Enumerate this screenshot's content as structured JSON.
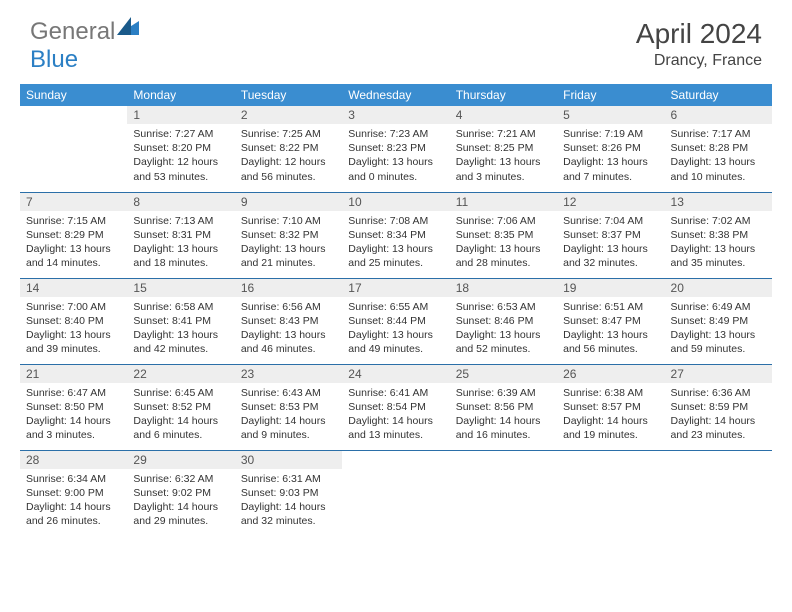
{
  "brand": {
    "part1": "General",
    "part2": "Blue"
  },
  "title": "April 2024",
  "location": "Drancy, France",
  "colors": {
    "header_bg": "#3a8dd0",
    "header_text": "#ffffff",
    "border": "#2b6fa8",
    "daynum_bg": "#eeeeee",
    "text": "#333333",
    "brand_blue": "#2b7fc4",
    "brand_gray": "#777777"
  },
  "weekdays": [
    "Sunday",
    "Monday",
    "Tuesday",
    "Wednesday",
    "Thursday",
    "Friday",
    "Saturday"
  ],
  "weeks": [
    [
      {
        "n": "",
        "sr": "",
        "ss": "",
        "dl": ""
      },
      {
        "n": "1",
        "sr": "Sunrise: 7:27 AM",
        "ss": "Sunset: 8:20 PM",
        "dl": "Daylight: 12 hours and 53 minutes."
      },
      {
        "n": "2",
        "sr": "Sunrise: 7:25 AM",
        "ss": "Sunset: 8:22 PM",
        "dl": "Daylight: 12 hours and 56 minutes."
      },
      {
        "n": "3",
        "sr": "Sunrise: 7:23 AM",
        "ss": "Sunset: 8:23 PM",
        "dl": "Daylight: 13 hours and 0 minutes."
      },
      {
        "n": "4",
        "sr": "Sunrise: 7:21 AM",
        "ss": "Sunset: 8:25 PM",
        "dl": "Daylight: 13 hours and 3 minutes."
      },
      {
        "n": "5",
        "sr": "Sunrise: 7:19 AM",
        "ss": "Sunset: 8:26 PM",
        "dl": "Daylight: 13 hours and 7 minutes."
      },
      {
        "n": "6",
        "sr": "Sunrise: 7:17 AM",
        "ss": "Sunset: 8:28 PM",
        "dl": "Daylight: 13 hours and 10 minutes."
      }
    ],
    [
      {
        "n": "7",
        "sr": "Sunrise: 7:15 AM",
        "ss": "Sunset: 8:29 PM",
        "dl": "Daylight: 13 hours and 14 minutes."
      },
      {
        "n": "8",
        "sr": "Sunrise: 7:13 AM",
        "ss": "Sunset: 8:31 PM",
        "dl": "Daylight: 13 hours and 18 minutes."
      },
      {
        "n": "9",
        "sr": "Sunrise: 7:10 AM",
        "ss": "Sunset: 8:32 PM",
        "dl": "Daylight: 13 hours and 21 minutes."
      },
      {
        "n": "10",
        "sr": "Sunrise: 7:08 AM",
        "ss": "Sunset: 8:34 PM",
        "dl": "Daylight: 13 hours and 25 minutes."
      },
      {
        "n": "11",
        "sr": "Sunrise: 7:06 AM",
        "ss": "Sunset: 8:35 PM",
        "dl": "Daylight: 13 hours and 28 minutes."
      },
      {
        "n": "12",
        "sr": "Sunrise: 7:04 AM",
        "ss": "Sunset: 8:37 PM",
        "dl": "Daylight: 13 hours and 32 minutes."
      },
      {
        "n": "13",
        "sr": "Sunrise: 7:02 AM",
        "ss": "Sunset: 8:38 PM",
        "dl": "Daylight: 13 hours and 35 minutes."
      }
    ],
    [
      {
        "n": "14",
        "sr": "Sunrise: 7:00 AM",
        "ss": "Sunset: 8:40 PM",
        "dl": "Daylight: 13 hours and 39 minutes."
      },
      {
        "n": "15",
        "sr": "Sunrise: 6:58 AM",
        "ss": "Sunset: 8:41 PM",
        "dl": "Daylight: 13 hours and 42 minutes."
      },
      {
        "n": "16",
        "sr": "Sunrise: 6:56 AM",
        "ss": "Sunset: 8:43 PM",
        "dl": "Daylight: 13 hours and 46 minutes."
      },
      {
        "n": "17",
        "sr": "Sunrise: 6:55 AM",
        "ss": "Sunset: 8:44 PM",
        "dl": "Daylight: 13 hours and 49 minutes."
      },
      {
        "n": "18",
        "sr": "Sunrise: 6:53 AM",
        "ss": "Sunset: 8:46 PM",
        "dl": "Daylight: 13 hours and 52 minutes."
      },
      {
        "n": "19",
        "sr": "Sunrise: 6:51 AM",
        "ss": "Sunset: 8:47 PM",
        "dl": "Daylight: 13 hours and 56 minutes."
      },
      {
        "n": "20",
        "sr": "Sunrise: 6:49 AM",
        "ss": "Sunset: 8:49 PM",
        "dl": "Daylight: 13 hours and 59 minutes."
      }
    ],
    [
      {
        "n": "21",
        "sr": "Sunrise: 6:47 AM",
        "ss": "Sunset: 8:50 PM",
        "dl": "Daylight: 14 hours and 3 minutes."
      },
      {
        "n": "22",
        "sr": "Sunrise: 6:45 AM",
        "ss": "Sunset: 8:52 PM",
        "dl": "Daylight: 14 hours and 6 minutes."
      },
      {
        "n": "23",
        "sr": "Sunrise: 6:43 AM",
        "ss": "Sunset: 8:53 PM",
        "dl": "Daylight: 14 hours and 9 minutes."
      },
      {
        "n": "24",
        "sr": "Sunrise: 6:41 AM",
        "ss": "Sunset: 8:54 PM",
        "dl": "Daylight: 14 hours and 13 minutes."
      },
      {
        "n": "25",
        "sr": "Sunrise: 6:39 AM",
        "ss": "Sunset: 8:56 PM",
        "dl": "Daylight: 14 hours and 16 minutes."
      },
      {
        "n": "26",
        "sr": "Sunrise: 6:38 AM",
        "ss": "Sunset: 8:57 PM",
        "dl": "Daylight: 14 hours and 19 minutes."
      },
      {
        "n": "27",
        "sr": "Sunrise: 6:36 AM",
        "ss": "Sunset: 8:59 PM",
        "dl": "Daylight: 14 hours and 23 minutes."
      }
    ],
    [
      {
        "n": "28",
        "sr": "Sunrise: 6:34 AM",
        "ss": "Sunset: 9:00 PM",
        "dl": "Daylight: 14 hours and 26 minutes."
      },
      {
        "n": "29",
        "sr": "Sunrise: 6:32 AM",
        "ss": "Sunset: 9:02 PM",
        "dl": "Daylight: 14 hours and 29 minutes."
      },
      {
        "n": "30",
        "sr": "Sunrise: 6:31 AM",
        "ss": "Sunset: 9:03 PM",
        "dl": "Daylight: 14 hours and 32 minutes."
      },
      {
        "n": "",
        "sr": "",
        "ss": "",
        "dl": ""
      },
      {
        "n": "",
        "sr": "",
        "ss": "",
        "dl": ""
      },
      {
        "n": "",
        "sr": "",
        "ss": "",
        "dl": ""
      },
      {
        "n": "",
        "sr": "",
        "ss": "",
        "dl": ""
      }
    ]
  ]
}
